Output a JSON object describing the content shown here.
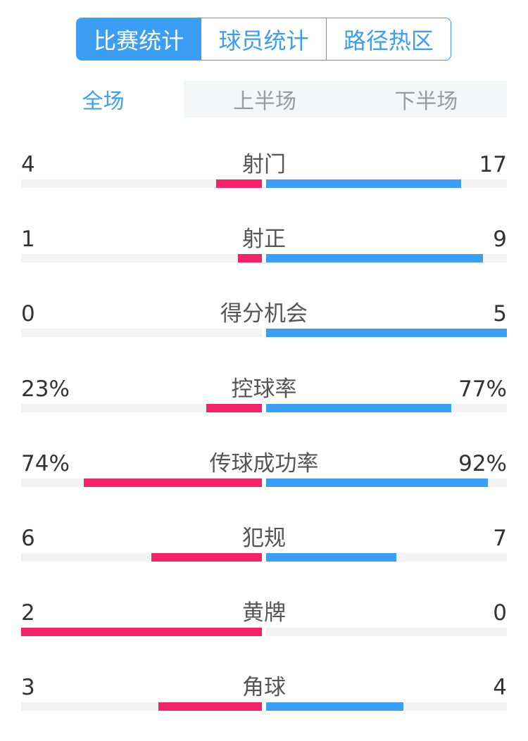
{
  "top_tabs": [
    {
      "label": "比赛统计",
      "active": true
    },
    {
      "label": "球员统计",
      "active": false
    },
    {
      "label": "路径热区",
      "active": false
    }
  ],
  "period_tabs": [
    {
      "label": "全场",
      "active": true
    },
    {
      "label": "上半场",
      "active": false
    },
    {
      "label": "下半场",
      "active": false
    }
  ],
  "colors": {
    "accent": "#3a9ef5",
    "home": "#f5226a",
    "away": "#3a9ef5"
  },
  "stats": [
    {
      "name": "射门",
      "left": "4",
      "right": "17",
      "left_fill": 0.19,
      "right_fill": 0.81
    },
    {
      "name": "射正",
      "left": "1",
      "right": "9",
      "left_fill": 0.1,
      "right_fill": 0.9
    },
    {
      "name": "得分机会",
      "left": "0",
      "right": "5",
      "left_fill": 0,
      "right_fill": 1
    },
    {
      "name": "控球率",
      "left": "23%",
      "right": "77%",
      "left_fill": 0.23,
      "right_fill": 0.77
    },
    {
      "name": "传球成功率",
      "left": "74%",
      "right": "92%",
      "left_fill": 0.74,
      "right_fill": 0.92
    },
    {
      "name": "犯规",
      "left": "6",
      "right": "7",
      "left_fill": 0.46,
      "right_fill": 0.54
    },
    {
      "name": "黄牌",
      "left": "2",
      "right": "0",
      "left_fill": 1,
      "right_fill": 0
    },
    {
      "name": "角球",
      "left": "3",
      "right": "4",
      "left_fill": 0.43,
      "right_fill": 0.57
    }
  ]
}
